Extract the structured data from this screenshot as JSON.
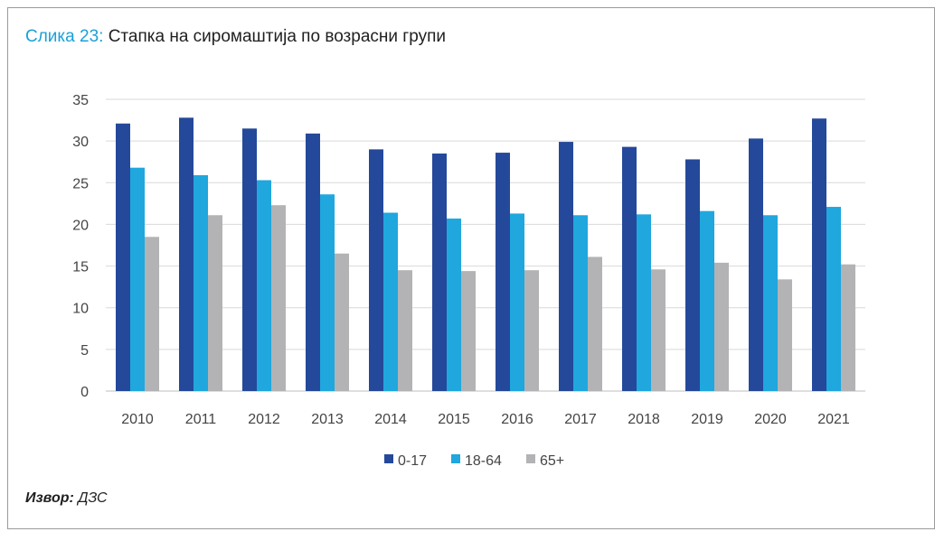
{
  "title": {
    "label": "Слика 23:",
    "text": "Стапка на сиромаштија по возрасни групи"
  },
  "source": {
    "label": "Извор:",
    "text": "ДЗС"
  },
  "chart_data": {
    "type": "bar",
    "categories": [
      "2010",
      "2011",
      "2012",
      "2013",
      "2014",
      "2015",
      "2016",
      "2017",
      "2018",
      "2019",
      "2020",
      "2021"
    ],
    "series": [
      {
        "name": "0-17",
        "color": "#24499a",
        "values": [
          32.1,
          32.8,
          31.5,
          30.9,
          29.0,
          28.5,
          28.6,
          29.9,
          29.3,
          27.8,
          30.3,
          32.7
        ]
      },
      {
        "name": "18-64",
        "color": "#1fa7de",
        "values": [
          26.8,
          25.9,
          25.3,
          23.6,
          21.4,
          20.7,
          21.3,
          21.1,
          21.2,
          21.6,
          21.1,
          22.1
        ]
      },
      {
        "name": "65+",
        "color": "#b3b3b5",
        "values": [
          18.5,
          21.1,
          22.3,
          16.5,
          14.5,
          14.4,
          14.5,
          16.1,
          14.6,
          15.4,
          13.4,
          15.2
        ]
      }
    ],
    "ylim": [
      0,
      35
    ],
    "yticks": [
      "0",
      "5",
      "10",
      "15",
      "20",
      "25",
      "30",
      "35"
    ],
    "grid": true,
    "legend": "bottom-center"
  }
}
